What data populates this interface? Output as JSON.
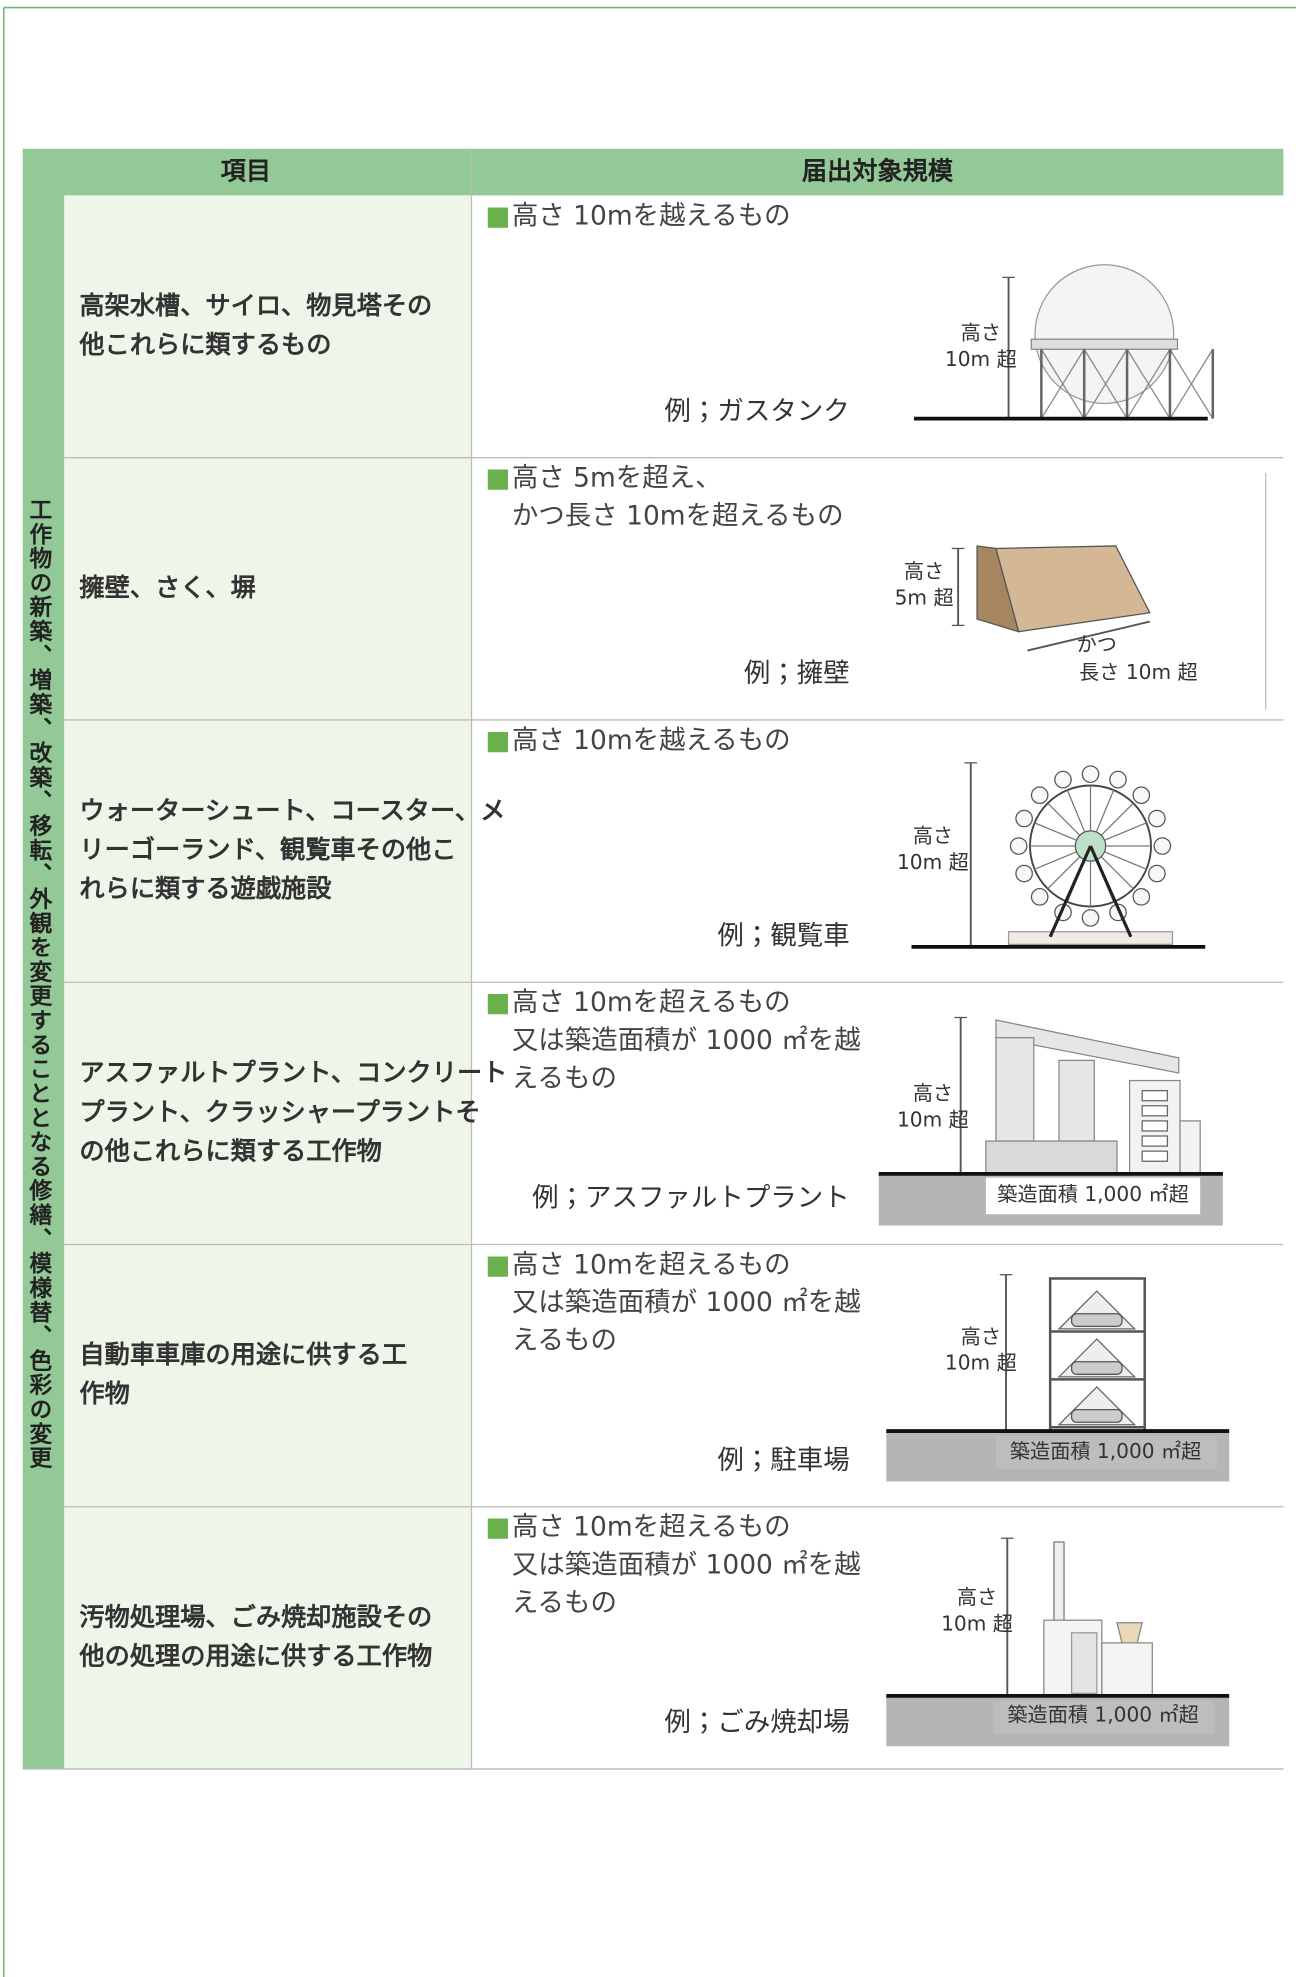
{
  "table": {
    "headers": [
      "項目",
      "届出対象規模"
    ],
    "group_label": "工作物の新築、増築、改築、移転、外観を変更することとなる修繕、模様替、色彩の変更",
    "rows": [
      {
        "item": [
          "高架水槽、サイロ、物見塔その",
          "他これらに類するもの"
        ],
        "marker": "■",
        "criteria": [
          "高さ 10mを越えるもの"
        ],
        "example": "例；ガスタンク",
        "figure_labels": [
          "高さ",
          "10m 超"
        ]
      },
      {
        "item": [
          "擁壁、さく、塀"
        ],
        "marker": "■",
        "criteria": [
          "高さ 5mを超え、",
          "かつ長さ 10mを超えるもの"
        ],
        "example": "例；擁壁",
        "figure_labels": [
          "高さ",
          "5m 超",
          "かつ",
          "長さ 10m 超"
        ]
      },
      {
        "item": [
          "ウォーターシュート、コースター、メ",
          "リーゴーランド、観覧車その他こ",
          "れらに類する遊戯施設"
        ],
        "marker": "■",
        "criteria": [
          "高さ 10mを越えるもの"
        ],
        "example": "例；観覧車",
        "figure_labels": [
          "高さ",
          "10m 超"
        ]
      },
      {
        "item": [
          "アスファルトプラント、コンクリート",
          "プラント、クラッシャープラントそ",
          "の他これらに類する工作物"
        ],
        "marker": "■",
        "criteria": [
          "高さ 10mを超えるもの",
          "又は築造面積が 1000 ㎡を越",
          "えるもの"
        ],
        "example": "例；アスファルトプラント",
        "figure_labels": [
          "高さ",
          "10m 超",
          "築造面積 1,000 ㎡超"
        ]
      },
      {
        "item": [
          "自動車車庫の用途に供する工",
          "作物"
        ],
        "marker": "■",
        "criteria": [
          "高さ 10mを超えるもの",
          "又は築造面積が 1000 ㎡を越",
          "えるもの"
        ],
        "example": "例；駐車場",
        "figure_labels": [
          "高さ",
          "10m 超",
          "築造面積 1,000 ㎡超"
        ]
      },
      {
        "item": [
          "汚物処理場、ごみ焼却施設その",
          "他の処理の用途に供する工作物"
        ],
        "marker": "■",
        "criteria": [
          "高さ 10mを超えるもの",
          "又は築造面積が 1000 ㎡を越",
          "えるもの"
        ],
        "example": "例；ごみ焼却場",
        "figure_labels": [
          "高さ",
          "10m 超",
          "築造面積 1,000 ㎡超"
        ]
      }
    ]
  }
}
